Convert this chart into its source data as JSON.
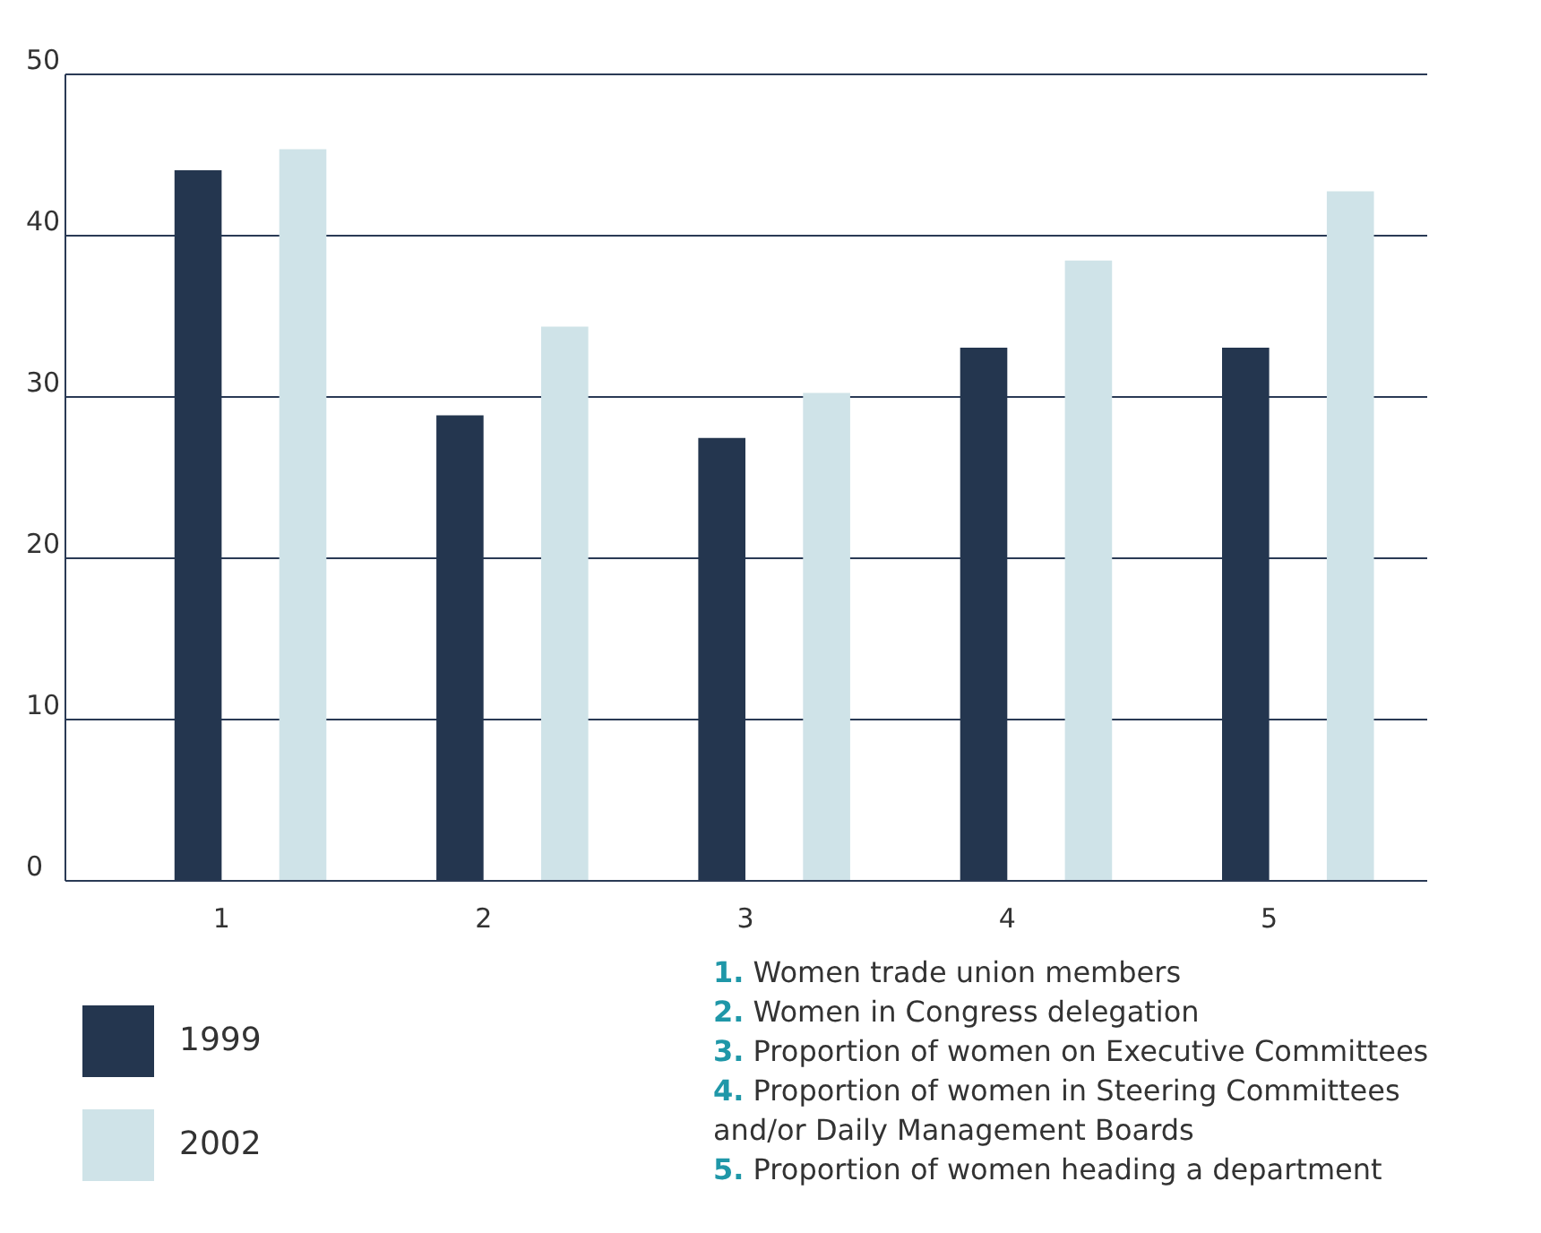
{
  "chart_data": {
    "type": "bar",
    "categories": [
      "1",
      "2",
      "3",
      "4",
      "5"
    ],
    "series": [
      {
        "name": "1999",
        "color": "#24364f",
        "values": [
          44.0,
          28.8,
          27.4,
          33.0,
          33.0
        ]
      },
      {
        "name": "2002",
        "color": "#cfe3e8",
        "values": [
          45.3,
          34.3,
          30.2,
          38.4,
          42.7
        ]
      }
    ],
    "ylim": [
      0,
      50
    ],
    "yticks": [
      0,
      10,
      20,
      30,
      40,
      50
    ],
    "grid": "y",
    "legend": "bottom left",
    "annotations": [
      "1. Women trade union members",
      "2. Women in Congress delegation",
      "3. Proportion of women on Executive Committees",
      "4. Proportion of women in Steering Committees and/or Daily Management Boards",
      "5. Proportion of women heading a department"
    ]
  }
}
